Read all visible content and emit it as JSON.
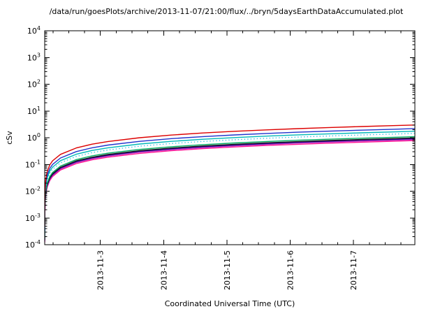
{
  "chart_data": {
    "type": "line",
    "title": "/data/run/goesPlots/archive/2013-11-07/21:00/flux/../bryn/5daysEarthDataAccumulated.plot",
    "xlabel": "Coordinated Universal Time (UTC)",
    "ylabel": "cSv",
    "y_scale": "log10",
    "ylim_exponents": [
      -4,
      4
    ],
    "grid": false,
    "legend": false,
    "axis_color": "#000000",
    "x_range_days": [
      0,
      5.85
    ],
    "x_ticks": [
      {
        "t": 0.88,
        "label": "2013-11-3"
      },
      {
        "t": 1.88,
        "label": "2013-11-4"
      },
      {
        "t": 2.88,
        "label": "2013-11-5"
      },
      {
        "t": 3.88,
        "label": "2013-11-6"
      },
      {
        "t": 4.88,
        "label": "2013-11-7"
      }
    ],
    "x_minor_step_days": 0.25,
    "x_days_from_start": [
      0.0001,
      0.0003,
      0.001,
      0.002,
      0.005,
      0.01,
      0.02,
      0.04,
      0.08,
      0.125,
      0.25,
      0.5,
      0.75,
      1,
      1.5,
      2,
      2.5,
      3,
      3.5,
      4,
      4.5,
      5,
      5.5,
      5.85
    ],
    "series": [
      {
        "name": "red",
        "color": "#dd0000",
        "dash": "",
        "final_csv": 3.0,
        "values": [
          0.00046,
          0.0011,
          0.0029,
          0.005,
          0.0104,
          0.0182,
          0.0315,
          0.0549,
          0.0957,
          0.1368,
          0.238,
          0.415,
          0.574,
          0.722,
          1.0,
          1.257,
          1.503,
          1.739,
          1.967,
          2.189,
          2.405,
          2.617,
          2.825,
          3.0
        ]
      },
      {
        "name": "blue",
        "color": "#2233cc",
        "dash": "",
        "final_csv": 2.2,
        "values": [
          0.00033,
          0.0008,
          0.0021,
          0.0037,
          0.0077,
          0.0133,
          0.0231,
          0.0403,
          0.0702,
          0.1003,
          0.175,
          0.304,
          0.421,
          0.53,
          0.733,
          0.922,
          1.102,
          1.275,
          1.443,
          1.606,
          1.764,
          1.919,
          2.071,
          2.2
        ]
      },
      {
        "name": "cyan",
        "color": "#00b8b8",
        "dash": "",
        "final_csv": 1.75,
        "values": [
          0.00027,
          0.00064,
          0.0017,
          0.0029,
          0.0061,
          0.0106,
          0.0184,
          0.032,
          0.0558,
          0.0798,
          0.139,
          0.242,
          0.335,
          0.421,
          0.583,
          0.733,
          0.877,
          1.014,
          1.148,
          1.277,
          1.403,
          1.527,
          1.648,
          1.75
        ]
      },
      {
        "name": "skyblue",
        "color": "#40c8e8",
        "dash": "1.5,3",
        "final_csv": 1.45,
        "values": [
          0.00022,
          0.00053,
          0.0014,
          0.0024,
          0.005,
          0.0088,
          0.0152,
          0.0265,
          0.0463,
          0.0661,
          0.115,
          0.201,
          0.277,
          0.349,
          0.483,
          0.608,
          0.727,
          0.841,
          0.951,
          1.058,
          1.163,
          1.265,
          1.365,
          1.45
        ]
      },
      {
        "name": "green",
        "color": "#00a860",
        "dash": "",
        "final_csv": 1.1,
        "values": [
          0.00017,
          0.0004,
          0.0011,
          0.0018,
          0.0038,
          0.0067,
          0.0116,
          0.0201,
          0.0351,
          0.0502,
          0.0873,
          0.152,
          0.21,
          0.265,
          0.367,
          0.461,
          0.551,
          0.638,
          0.721,
          0.803,
          0.882,
          0.96,
          1.036,
          1.1
        ]
      },
      {
        "name": "black",
        "color": "#111111",
        "dash": "",
        "final_csv": 0.98,
        "values": [
          0.00015,
          0.00036,
          0.00094,
          0.0016,
          0.0034,
          0.0059,
          0.0103,
          0.0179,
          0.0313,
          0.0447,
          0.0778,
          0.136,
          0.187,
          0.236,
          0.327,
          0.411,
          0.491,
          0.568,
          0.643,
          0.715,
          0.786,
          0.855,
          0.923,
          0.98
        ]
      },
      {
        "name": "navy",
        "color": "#3311a0",
        "dash": "",
        "final_csv": 0.92,
        "values": [
          0.00014,
          0.00034,
          0.00088,
          0.0015,
          0.0032,
          0.0056,
          0.0097,
          0.0168,
          0.0293,
          0.042,
          0.073,
          0.127,
          0.176,
          0.221,
          0.307,
          0.385,
          0.461,
          0.533,
          0.603,
          0.671,
          0.738,
          0.803,
          0.866,
          0.92
        ]
      },
      {
        "name": "magenta",
        "color": "#bb22bb",
        "dash": "",
        "final_csv": 0.86,
        "values": [
          0.00013,
          0.00031,
          0.00083,
          0.0014,
          0.003,
          0.0052,
          0.009,
          0.0157,
          0.0274,
          0.0392,
          0.0683,
          0.119,
          0.165,
          0.207,
          0.287,
          0.36,
          0.431,
          0.499,
          0.564,
          0.628,
          0.69,
          0.75,
          0.81,
          0.86
        ]
      },
      {
        "name": "pink",
        "color": "#ff1493",
        "dash": "",
        "final_csv": 0.78,
        "values": [
          0.00012,
          0.00029,
          0.00075,
          0.0013,
          0.0027,
          0.0047,
          0.0082,
          0.0143,
          0.0249,
          0.0356,
          0.0619,
          0.108,
          0.149,
          0.188,
          0.26,
          0.327,
          0.391,
          0.452,
          0.512,
          0.569,
          0.625,
          0.681,
          0.734,
          0.78
        ]
      }
    ]
  }
}
